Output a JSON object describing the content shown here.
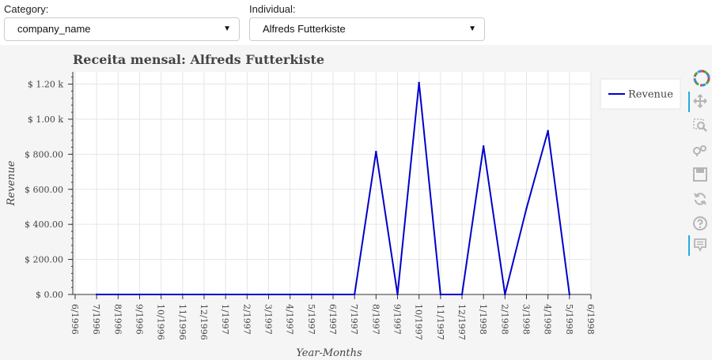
{
  "controls": {
    "category": {
      "label": "Category:",
      "value": "company_name"
    },
    "individual": {
      "label": "Individual:",
      "value": "Alfreds Futterkiste"
    }
  },
  "chart_data": {
    "type": "line",
    "title": "Receita mensal: Alfreds Futterkiste",
    "xlabel": "Year-Months",
    "ylabel": "Revenue",
    "categories": [
      "6/1996",
      "7/1996",
      "8/1996",
      "9/1996",
      "10/1996",
      "11/1996",
      "12/1996",
      "1/1997",
      "2/1997",
      "3/1997",
      "4/1997",
      "5/1997",
      "6/1997",
      "7/1997",
      "8/1997",
      "9/1997",
      "10/1997",
      "11/1997",
      "12/1997",
      "1/1998",
      "2/1998",
      "3/1998",
      "4/1998",
      "5/1998",
      "6/1998"
    ],
    "series": [
      {
        "name": "Revenue",
        "color": "#0000cc",
        "x": [
          "7/1996",
          "8/1996",
          "9/1996",
          "10/1996",
          "11/1996",
          "12/1996",
          "1/1997",
          "2/1997",
          "3/1997",
          "4/1997",
          "5/1997",
          "6/1997",
          "7/1997",
          "8/1997",
          "9/1997",
          "10/1997",
          "11/1997",
          "12/1997",
          "1/1998",
          "2/1998",
          "3/1998",
          "4/1998",
          "5/1998"
        ],
        "values": [
          0,
          0,
          0,
          0,
          0,
          0,
          0,
          0,
          0,
          0,
          0,
          0,
          0,
          814.5,
          0,
          1208,
          0,
          0,
          845.8,
          0,
          491.2,
          933.5,
          0
        ]
      }
    ],
    "yticks": [
      0,
      200,
      400,
      600,
      800,
      1000,
      1200
    ],
    "ytick_labels": [
      "$ 0.00",
      "$ 200.00",
      "$ 400.00",
      "$ 600.00",
      "$ 800.00",
      "$ 1.00 k",
      "$ 1.20 k"
    ],
    "ylim": [
      0,
      1270
    ],
    "grid": true,
    "legend": "top-right"
  },
  "toolbar": {
    "tools": [
      {
        "name": "bokeh-logo-icon"
      },
      {
        "name": "pan-icon",
        "active": true
      },
      {
        "name": "box-zoom-icon"
      },
      {
        "name": "wheel-zoom-icon"
      },
      {
        "name": "save-icon"
      },
      {
        "name": "reset-icon"
      },
      {
        "name": "help-icon"
      },
      {
        "name": "hover-icon",
        "active": true
      }
    ]
  }
}
